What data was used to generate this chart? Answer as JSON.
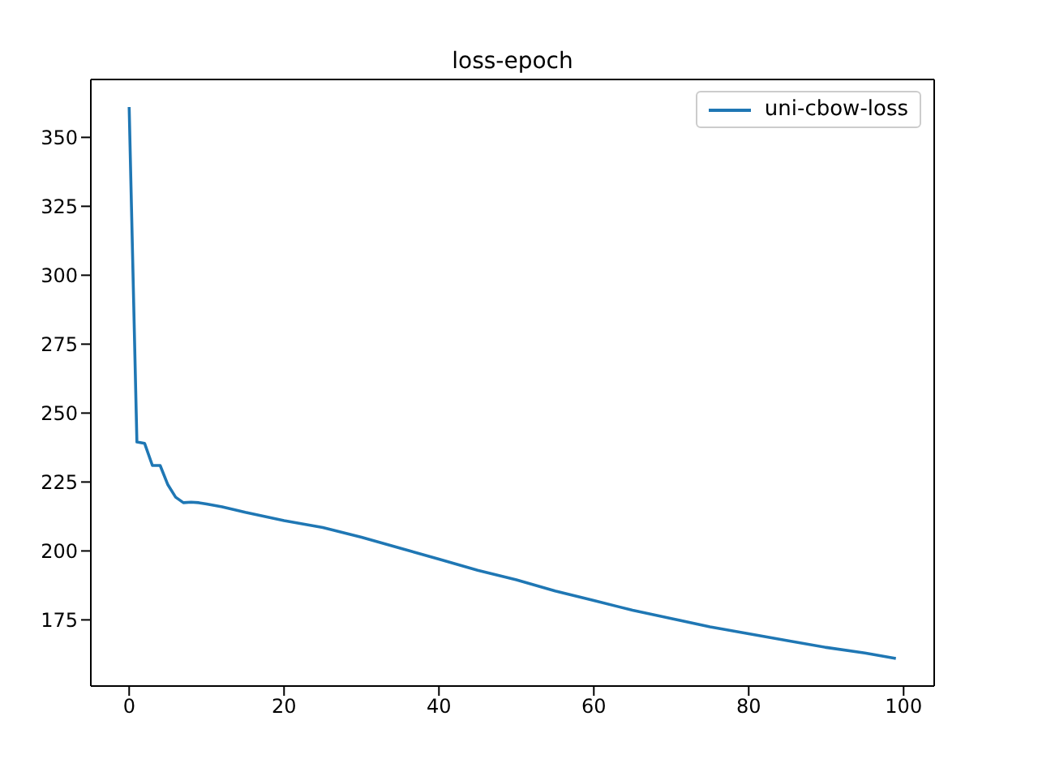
{
  "chart_data": {
    "type": "line",
    "title": "loss-epoch",
    "x": [
      0,
      1,
      2,
      3,
      4,
      5,
      6,
      7,
      8,
      9,
      10,
      12,
      15,
      20,
      25,
      30,
      35,
      40,
      45,
      50,
      55,
      60,
      65,
      70,
      75,
      80,
      85,
      90,
      95,
      99
    ],
    "series": [
      {
        "name": "uni-cbow-loss",
        "color": "#1f77b4",
        "values": [
          361,
          239.5,
          239,
          231,
          231,
          224,
          219.5,
          217.5,
          217.7,
          217.5,
          217,
          216,
          214,
          211,
          208.5,
          205,
          201,
          197,
          193,
          189.5,
          185.5,
          182,
          178.5,
          175.5,
          172.5,
          170,
          167.5,
          165,
          163,
          161
        ]
      }
    ],
    "xlim": [
      -4.95,
      103.95
    ],
    "xticks": [
      0,
      20,
      40,
      60,
      80,
      100
    ],
    "ylim": [
      151,
      371
    ],
    "yticks": [
      175,
      200,
      225,
      250,
      275,
      300,
      325,
      350
    ],
    "legend": "top right",
    "marker": "none",
    "line_style": "solid"
  }
}
